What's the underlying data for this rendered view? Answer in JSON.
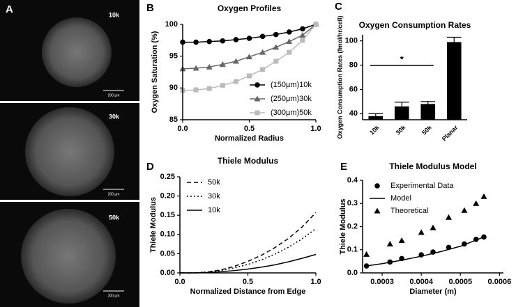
{
  "image_panel": {
    "panel": "A",
    "tiles": [
      {
        "label": "10k",
        "scale": "200 µm"
      },
      {
        "label": "30k",
        "scale": "200 µm"
      },
      {
        "label": "50k",
        "scale": "200 µm"
      }
    ]
  },
  "chart_data": [
    {
      "type": "line",
      "panel": "B",
      "title": "Oxygen Profiles",
      "xlabel": "Normalized Radius",
      "ylabel": "Oxygen Saturation (%)",
      "x": [
        0,
        0.1,
        0.2,
        0.3,
        0.4,
        0.5,
        0.6,
        0.7,
        0.8,
        0.9,
        1
      ],
      "series": [
        {
          "name": "(150μm)10k",
          "color": "#000000",
          "marker": "circle",
          "linestyle": "solid",
          "values": [
            97.2,
            97.2,
            97.3,
            97.4,
            97.6,
            97.8,
            98.1,
            98.4,
            98.8,
            99.3,
            100
          ]
        },
        {
          "name": "(250μm)30k",
          "color": "#666666",
          "marker": "triangle",
          "linestyle": "solid",
          "values": [
            93.0,
            93.1,
            93.3,
            93.7,
            94.2,
            94.9,
            95.6,
            96.4,
            97.3,
            98.3,
            100
          ]
        },
        {
          "name": "(300μm)50k",
          "color": "#bbbbbb",
          "marker": "square",
          "linestyle": "solid",
          "values": [
            89.6,
            89.7,
            89.9,
            90.4,
            91.0,
            91.9,
            92.9,
            94.2,
            95.6,
            97.5,
            100
          ]
        }
      ],
      "xlim": [
        0,
        1
      ],
      "xticks": [
        {
          "value": 0,
          "label": "0.0"
        },
        {
          "value": 0.5,
          "label": "0.5"
        },
        {
          "value": 1,
          "label": "1.0"
        }
      ],
      "ylim": [
        85,
        100
      ],
      "yticks": [
        85,
        90,
        95,
        100
      ],
      "legend": "lower right"
    },
    {
      "type": "bar",
      "panel": "C",
      "title": "Oxygen Consumption Rates",
      "ylabel": "Oxygen Consumption Rates (fmol/hr/cell)",
      "categories": [
        "10k",
        "30k",
        "50k",
        "Planar"
      ],
      "values": [
        38,
        46,
        48,
        99
      ],
      "errors": [
        2,
        3.5,
        2,
        4
      ],
      "color": "#000000",
      "ylim": [
        35,
        105
      ],
      "yticks": [
        40,
        60,
        80,
        100
      ],
      "annotation": "*"
    },
    {
      "type": "line",
      "panel": "D",
      "title": "Thiele Modulus",
      "xlabel": "Normalized Distance from Edge",
      "ylabel": "Thiele Modulus",
      "x": [
        0,
        0.1,
        0.2,
        0.3,
        0.4,
        0.5,
        0.6,
        0.7,
        0.8,
        0.9,
        1
      ],
      "series": [
        {
          "name": "50k",
          "color": "#000000",
          "marker": "none",
          "linestyle": "dashed",
          "values": [
            0,
            0,
            0.002,
            0.008,
            0.017,
            0.03,
            0.046,
            0.066,
            0.09,
            0.12,
            0.157
          ]
        },
        {
          "name": "30k",
          "color": "#000000",
          "marker": "none",
          "linestyle": "dotted",
          "values": [
            0,
            0,
            0.002,
            0.006,
            0.013,
            0.022,
            0.034,
            0.049,
            0.067,
            0.089,
            0.115
          ]
        },
        {
          "name": "10k",
          "color": "#000000",
          "marker": "none",
          "linestyle": "solid",
          "values": [
            0,
            0,
            0.001,
            0.003,
            0.006,
            0.01,
            0.015,
            0.021,
            0.029,
            0.038,
            0.048
          ]
        }
      ],
      "xlim": [
        0,
        1
      ],
      "xticks": [
        {
          "value": 0,
          "label": "0.0"
        },
        {
          "value": 0.5,
          "label": "0.5"
        },
        {
          "value": 1,
          "label": "1.0"
        }
      ],
      "ylim": [
        0,
        0.25
      ],
      "yticks": [
        {
          "value": 0,
          "label": "0.00"
        },
        {
          "value": 0.05,
          "label": "0.05"
        },
        {
          "value": 0.1,
          "label": "0.10"
        },
        {
          "value": 0.15,
          "label": "0.15"
        },
        {
          "value": 0.2,
          "label": "0.20"
        },
        {
          "value": 0.25,
          "label": "0.25"
        }
      ],
      "legend": "upper left"
    },
    {
      "type": "scatter",
      "panel": "E",
      "title": "Thiele Modulus Model",
      "xlabel": "Diameter (m)",
      "ylabel": "Thiele Modulus",
      "series": [
        {
          "name": "Experimental Data",
          "color": "#000000",
          "marker": "circle",
          "x": [
            0.00026,
            0.00032,
            0.00035,
            0.0004,
            0.00043,
            0.00047,
            0.00051,
            0.00054,
            0.00056
          ],
          "values": [
            0.03,
            0.047,
            0.062,
            0.078,
            0.09,
            0.11,
            0.125,
            0.145,
            0.155
          ]
        },
        {
          "name": "Model",
          "color": "#000000",
          "marker": "none",
          "linestyle": "solid",
          "x": [
            0.00026,
            0.0003,
            0.00035,
            0.0004,
            0.00045,
            0.0005,
            0.00056
          ],
          "values": [
            0.03,
            0.04,
            0.055,
            0.072,
            0.092,
            0.115,
            0.155
          ]
        },
        {
          "name": "Theoretical",
          "color": "#000000",
          "marker": "triangle",
          "x": [
            0.00026,
            0.00032,
            0.00035,
            0.0004,
            0.00043,
            0.00047,
            0.00051,
            0.00054,
            0.00056
          ],
          "values": [
            0.08,
            0.125,
            0.14,
            0.175,
            0.195,
            0.24,
            0.27,
            0.3,
            0.33
          ]
        }
      ],
      "xlim": [
        0.00025,
        0.00061
      ],
      "xticks": [
        0.0003,
        0.0004,
        0.0005,
        0.0006
      ],
      "ylim": [
        0,
        0.4
      ],
      "yticks": [
        {
          "value": 0,
          "label": "0.0"
        },
        {
          "value": 0.1,
          "label": "0.1"
        },
        {
          "value": 0.2,
          "label": "0.2"
        },
        {
          "value": 0.3,
          "label": "0.3"
        },
        {
          "value": 0.4,
          "label": "0.4"
        }
      ],
      "legend": "upper left"
    }
  ]
}
